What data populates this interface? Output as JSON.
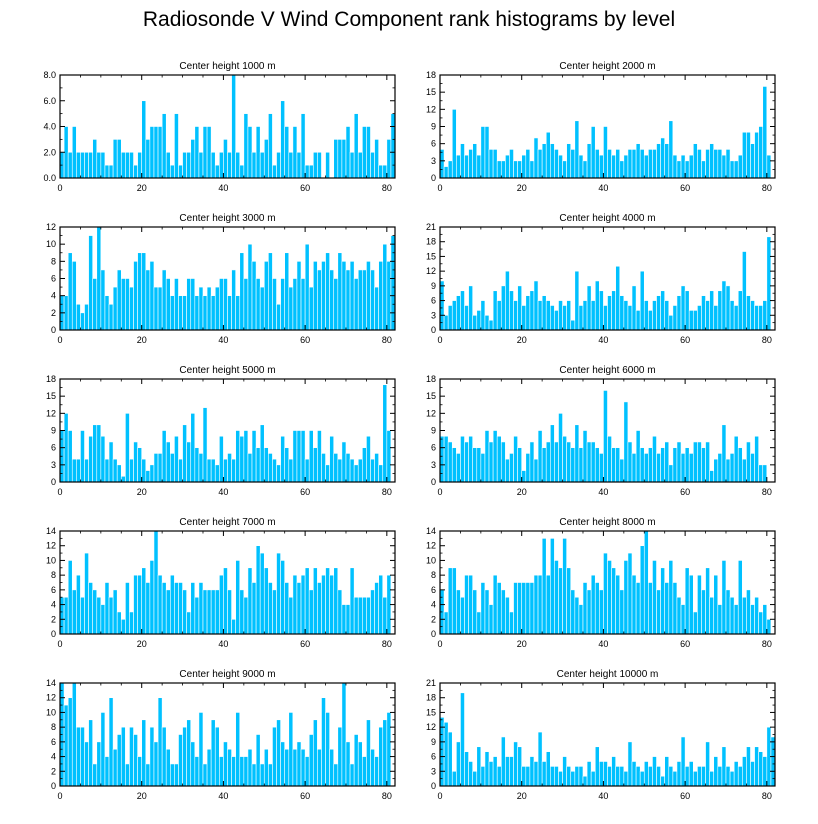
{
  "title": "Radiosonde V Wind Component rank histograms by level",
  "colors": {
    "bar": "#00c1ff",
    "bar_edge": "#ffffff",
    "axis": "#000000"
  },
  "chart_data": [
    {
      "type": "bar",
      "title": "Center height 1000 m",
      "xlabel": "",
      "ylabel": "",
      "xlim": [
        0,
        82
      ],
      "ylim": [
        0,
        8
      ],
      "xticks": [
        0,
        20,
        40,
        60,
        80
      ],
      "yticks": [
        0,
        2,
        4,
        6,
        8
      ],
      "ytick_labels": [
        "0.0",
        "2.0",
        "4.0",
        "6.0",
        "8.0"
      ],
      "values": [
        2,
        4,
        2,
        4,
        2,
        2,
        2,
        2,
        3,
        2,
        2,
        1,
        1,
        3,
        3,
        2,
        2,
        2,
        1,
        2,
        6,
        3,
        4,
        4,
        4,
        5,
        2,
        1,
        5,
        1,
        2,
        2,
        3,
        4,
        2,
        4,
        4,
        2,
        1,
        2,
        3,
        2,
        8,
        2,
        1,
        5,
        4,
        2,
        4,
        2,
        3,
        5,
        1,
        2,
        6,
        4,
        2,
        4,
        2,
        5,
        1,
        1,
        2,
        2,
        0,
        2,
        0,
        3,
        3,
        3,
        4,
        2,
        5,
        2,
        4,
        4,
        2,
        3,
        1,
        1,
        3,
        5
      ]
    },
    {
      "type": "bar",
      "title": "Center height 2000 m",
      "xlabel": "",
      "ylabel": "",
      "xlim": [
        0,
        82
      ],
      "ylim": [
        0,
        18
      ],
      "xticks": [
        0,
        20,
        40,
        60,
        80
      ],
      "yticks": [
        0,
        3,
        6,
        9,
        12,
        15,
        18
      ],
      "ytick_labels": [
        "0",
        "3",
        "6",
        "9",
        "12",
        "15",
        "18"
      ],
      "values": [
        5,
        2,
        3,
        12,
        4,
        6,
        4,
        5,
        6,
        4,
        9,
        9,
        5,
        5,
        3,
        3,
        4,
        5,
        3,
        3,
        4,
        5,
        3,
        7,
        5,
        6,
        8,
        6,
        5,
        4,
        3,
        6,
        5,
        10,
        4,
        3,
        6,
        9,
        5,
        4,
        9,
        5,
        4,
        5,
        3,
        4,
        5,
        5,
        6,
        5,
        4,
        5,
        5,
        6,
        7,
        6,
        10,
        4,
        3,
        4,
        3,
        4,
        6,
        5,
        3,
        5,
        6,
        5,
        5,
        4,
        5,
        3,
        3,
        4,
        8,
        8,
        6,
        8,
        9,
        16,
        4
      ]
    },
    {
      "type": "bar",
      "title": "Center height 3000 m",
      "xlabel": "",
      "ylabel": "",
      "xlim": [
        0,
        82
      ],
      "ylim": [
        0,
        12
      ],
      "xticks": [
        0,
        20,
        40,
        60,
        80
      ],
      "yticks": [
        0,
        2,
        4,
        6,
        8,
        10,
        12
      ],
      "ytick_labels": [
        "0",
        "2",
        "4",
        "6",
        "8",
        "10",
        "12"
      ],
      "values": [
        4,
        4,
        9,
        8,
        3,
        2,
        3,
        11,
        6,
        12,
        7,
        4,
        3,
        5,
        7,
        6,
        6,
        5,
        8,
        9,
        9,
        7,
        8,
        5,
        5,
        7,
        6,
        4,
        6,
        4,
        4,
        6,
        6,
        4,
        5,
        4,
        5,
        4,
        5,
        6,
        6,
        4,
        7,
        4,
        9,
        6,
        10,
        8,
        6,
        5,
        8,
        9,
        6,
        3,
        6,
        9,
        5,
        6,
        8,
        6,
        10,
        5,
        8,
        7,
        8,
        9,
        7,
        6,
        9,
        8,
        7,
        8,
        6,
        7,
        7,
        8,
        7,
        5,
        8,
        10,
        8,
        11
      ]
    },
    {
      "type": "bar",
      "title": "Center height 4000 m",
      "xlabel": "",
      "ylabel": "",
      "xlim": [
        0,
        82
      ],
      "ylim": [
        0,
        21
      ],
      "xticks": [
        0,
        20,
        40,
        60,
        80
      ],
      "yticks": [
        0,
        3,
        6,
        9,
        12,
        15,
        18,
        21
      ],
      "ytick_labels": [
        "0",
        "3",
        "6",
        "9",
        "12",
        "15",
        "18",
        "21"
      ],
      "values": [
        10,
        3,
        5,
        6,
        7,
        8,
        5,
        9,
        3,
        4,
        6,
        3,
        2,
        8,
        6,
        9,
        12,
        8,
        6,
        9,
        5,
        7,
        8,
        10,
        6,
        7,
        6,
        5,
        4,
        6,
        5,
        6,
        2,
        12,
        5,
        6,
        9,
        6,
        10,
        8,
        5,
        7,
        8,
        13,
        7,
        6,
        5,
        9,
        4,
        12,
        6,
        4,
        6,
        7,
        8,
        6,
        3,
        5,
        7,
        9,
        8,
        4,
        4,
        5,
        7,
        6,
        8,
        5,
        8,
        10,
        9,
        6,
        5,
        8,
        16,
        7,
        6,
        5,
        5,
        6,
        19
      ]
    },
    {
      "type": "bar",
      "title": "Center height 5000 m",
      "xlabel": "",
      "ylabel": "",
      "xlim": [
        0,
        82
      ],
      "ylim": [
        0,
        18
      ],
      "xticks": [
        0,
        20,
        40,
        60,
        80
      ],
      "yticks": [
        0,
        3,
        6,
        9,
        12,
        15,
        18
      ],
      "ytick_labels": [
        "0",
        "3",
        "6",
        "9",
        "12",
        "15",
        "18"
      ],
      "values": [
        9,
        12,
        9,
        4,
        4,
        9,
        4,
        8,
        10,
        10,
        8,
        4,
        7,
        4,
        3,
        1,
        12,
        4,
        7,
        6,
        4,
        2,
        3,
        5,
        5,
        9,
        7,
        5,
        8,
        4,
        10,
        7,
        12,
        6,
        5,
        13,
        4,
        4,
        3,
        8,
        4,
        5,
        4,
        9,
        8,
        9,
        5,
        9,
        6,
        10,
        6,
        5,
        4,
        3,
        8,
        6,
        4,
        9,
        9,
        9,
        4,
        9,
        6,
        9,
        5,
        3,
        8,
        5,
        4,
        7,
        5,
        4,
        3,
        4,
        6,
        8,
        4,
        5,
        3,
        17,
        9
      ]
    },
    {
      "type": "bar",
      "title": "Center height 6000 m",
      "xlabel": "",
      "ylabel": "",
      "xlim": [
        0,
        82
      ],
      "ylim": [
        0,
        18
      ],
      "xticks": [
        0,
        20,
        40,
        60,
        80
      ],
      "yticks": [
        0,
        3,
        6,
        9,
        12,
        15,
        18
      ],
      "ytick_labels": [
        "0",
        "3",
        "6",
        "9",
        "12",
        "15",
        "18"
      ],
      "values": [
        8,
        8,
        7,
        6,
        5,
        8,
        7,
        8,
        6,
        6,
        5,
        9,
        7,
        9,
        8,
        7,
        4,
        5,
        8,
        6,
        2,
        5,
        7,
        4,
        9,
        6,
        7,
        10,
        7,
        12,
        8,
        7,
        6,
        10,
        6,
        9,
        7,
        7,
        6,
        5,
        16,
        8,
        6,
        6,
        4,
        14,
        7,
        5,
        9,
        6,
        5,
        6,
        8,
        5,
        6,
        7,
        3,
        6,
        7,
        5,
        6,
        5,
        7,
        7,
        6,
        7,
        2,
        4,
        5,
        10,
        4,
        5,
        8,
        6,
        4,
        7,
        5,
        8,
        3,
        3
      ]
    },
    {
      "type": "bar",
      "title": "Center height 7000 m",
      "xlabel": "",
      "ylabel": "",
      "xlim": [
        0,
        82
      ],
      "ylim": [
        0,
        14
      ],
      "xticks": [
        0,
        20,
        40,
        60,
        80
      ],
      "yticks": [
        0,
        2,
        4,
        6,
        8,
        10,
        12,
        14
      ],
      "ytick_labels": [
        "0",
        "2",
        "4",
        "6",
        "8",
        "10",
        "12",
        "14"
      ],
      "values": [
        5,
        5,
        10,
        6,
        8,
        5,
        11,
        7,
        6,
        5,
        4,
        7,
        5,
        6,
        3,
        2,
        7,
        3,
        8,
        8,
        9,
        7,
        10,
        14,
        8,
        7,
        6,
        8,
        7,
        7,
        6,
        3,
        7,
        5,
        7,
        6,
        6,
        6,
        6,
        8,
        9,
        6,
        2,
        10,
        6,
        5,
        9,
        7,
        12,
        11,
        9,
        7,
        6,
        11,
        10,
        7,
        5,
        8,
        7,
        8,
        9,
        6,
        9,
        7,
        8,
        9,
        8,
        9,
        6,
        4,
        4,
        9,
        5,
        5,
        5,
        5,
        6,
        7,
        8,
        5,
        8
      ]
    },
    {
      "type": "bar",
      "title": "Center height 8000 m",
      "xlabel": "",
      "ylabel": "",
      "xlim": [
        0,
        82
      ],
      "ylim": [
        0,
        14
      ],
      "xticks": [
        0,
        20,
        40,
        60,
        80
      ],
      "yticks": [
        0,
        2,
        4,
        6,
        8,
        10,
        12,
        14
      ],
      "ytick_labels": [
        "0",
        "2",
        "4",
        "6",
        "8",
        "10",
        "12",
        "14"
      ],
      "values": [
        6,
        3,
        9,
        9,
        6,
        5,
        8,
        8,
        6,
        3,
        7,
        6,
        4,
        8,
        7,
        6,
        5,
        3,
        7,
        7,
        7,
        7,
        7,
        8,
        8,
        13,
        8,
        13,
        10,
        9,
        13,
        9,
        6,
        5,
        4,
        7,
        6,
        8,
        7,
        6,
        11,
        10,
        9,
        8,
        6,
        10,
        11,
        8,
        7,
        12,
        14,
        7,
        10,
        6,
        9,
        7,
        10,
        7,
        5,
        4,
        9,
        8,
        3,
        8,
        6,
        9,
        5,
        8,
        4,
        10,
        6,
        5,
        4,
        10,
        5,
        6,
        4,
        5,
        3,
        4,
        2
      ]
    },
    {
      "type": "bar",
      "title": "Center height 9000 m",
      "xlabel": "",
      "ylabel": "",
      "xlim": [
        0,
        82
      ],
      "ylim": [
        0,
        14
      ],
      "xticks": [
        0,
        20,
        40,
        60,
        80
      ],
      "yticks": [
        0,
        2,
        4,
        6,
        8,
        10,
        12,
        14
      ],
      "ytick_labels": [
        "0",
        "2",
        "4",
        "6",
        "8",
        "10",
        "12",
        "14"
      ],
      "values": [
        14,
        11,
        12,
        14,
        8,
        8,
        6,
        9,
        3,
        6,
        10,
        4,
        12,
        5,
        7,
        8,
        3,
        8,
        7,
        4,
        9,
        3,
        8,
        6,
        12,
        8,
        5,
        3,
        3,
        7,
        8,
        9,
        6,
        4,
        10,
        3,
        5,
        9,
        8,
        4,
        6,
        5,
        4,
        10,
        4,
        4,
        5,
        3,
        7,
        3,
        5,
        3,
        8,
        9,
        6,
        5,
        10,
        5,
        6,
        5,
        4,
        7,
        9,
        5,
        12,
        10,
        5,
        3,
        8,
        14,
        6,
        3,
        7,
        6,
        4,
        9,
        5,
        4,
        8,
        9,
        10
      ]
    },
    {
      "type": "bar",
      "title": "Center height 10000 m",
      "xlabel": "",
      "ylabel": "",
      "xlim": [
        0,
        82
      ],
      "ylim": [
        0,
        21
      ],
      "xticks": [
        0,
        20,
        40,
        60,
        80
      ],
      "yticks": [
        0,
        3,
        6,
        9,
        12,
        15,
        18,
        21
      ],
      "ytick_labels": [
        "0",
        "3",
        "6",
        "9",
        "12",
        "15",
        "18",
        "21"
      ],
      "values": [
        14,
        13,
        11,
        3,
        9,
        19,
        7,
        5,
        3,
        8,
        4,
        7,
        5,
        6,
        4,
        10,
        6,
        6,
        9,
        8,
        4,
        4,
        6,
        5,
        11,
        5,
        7,
        4,
        4,
        3,
        6,
        4,
        3,
        4,
        4,
        2,
        5,
        3,
        8,
        5,
        5,
        4,
        6,
        4,
        4,
        3,
        9,
        5,
        4,
        3,
        5,
        4,
        6,
        4,
        2,
        6,
        4,
        3,
        5,
        10,
        4,
        5,
        3,
        4,
        4,
        9,
        3,
        6,
        4,
        8,
        4,
        3,
        5,
        4,
        6,
        8,
        5,
        8,
        7,
        6,
        12,
        10
      ]
    }
  ]
}
